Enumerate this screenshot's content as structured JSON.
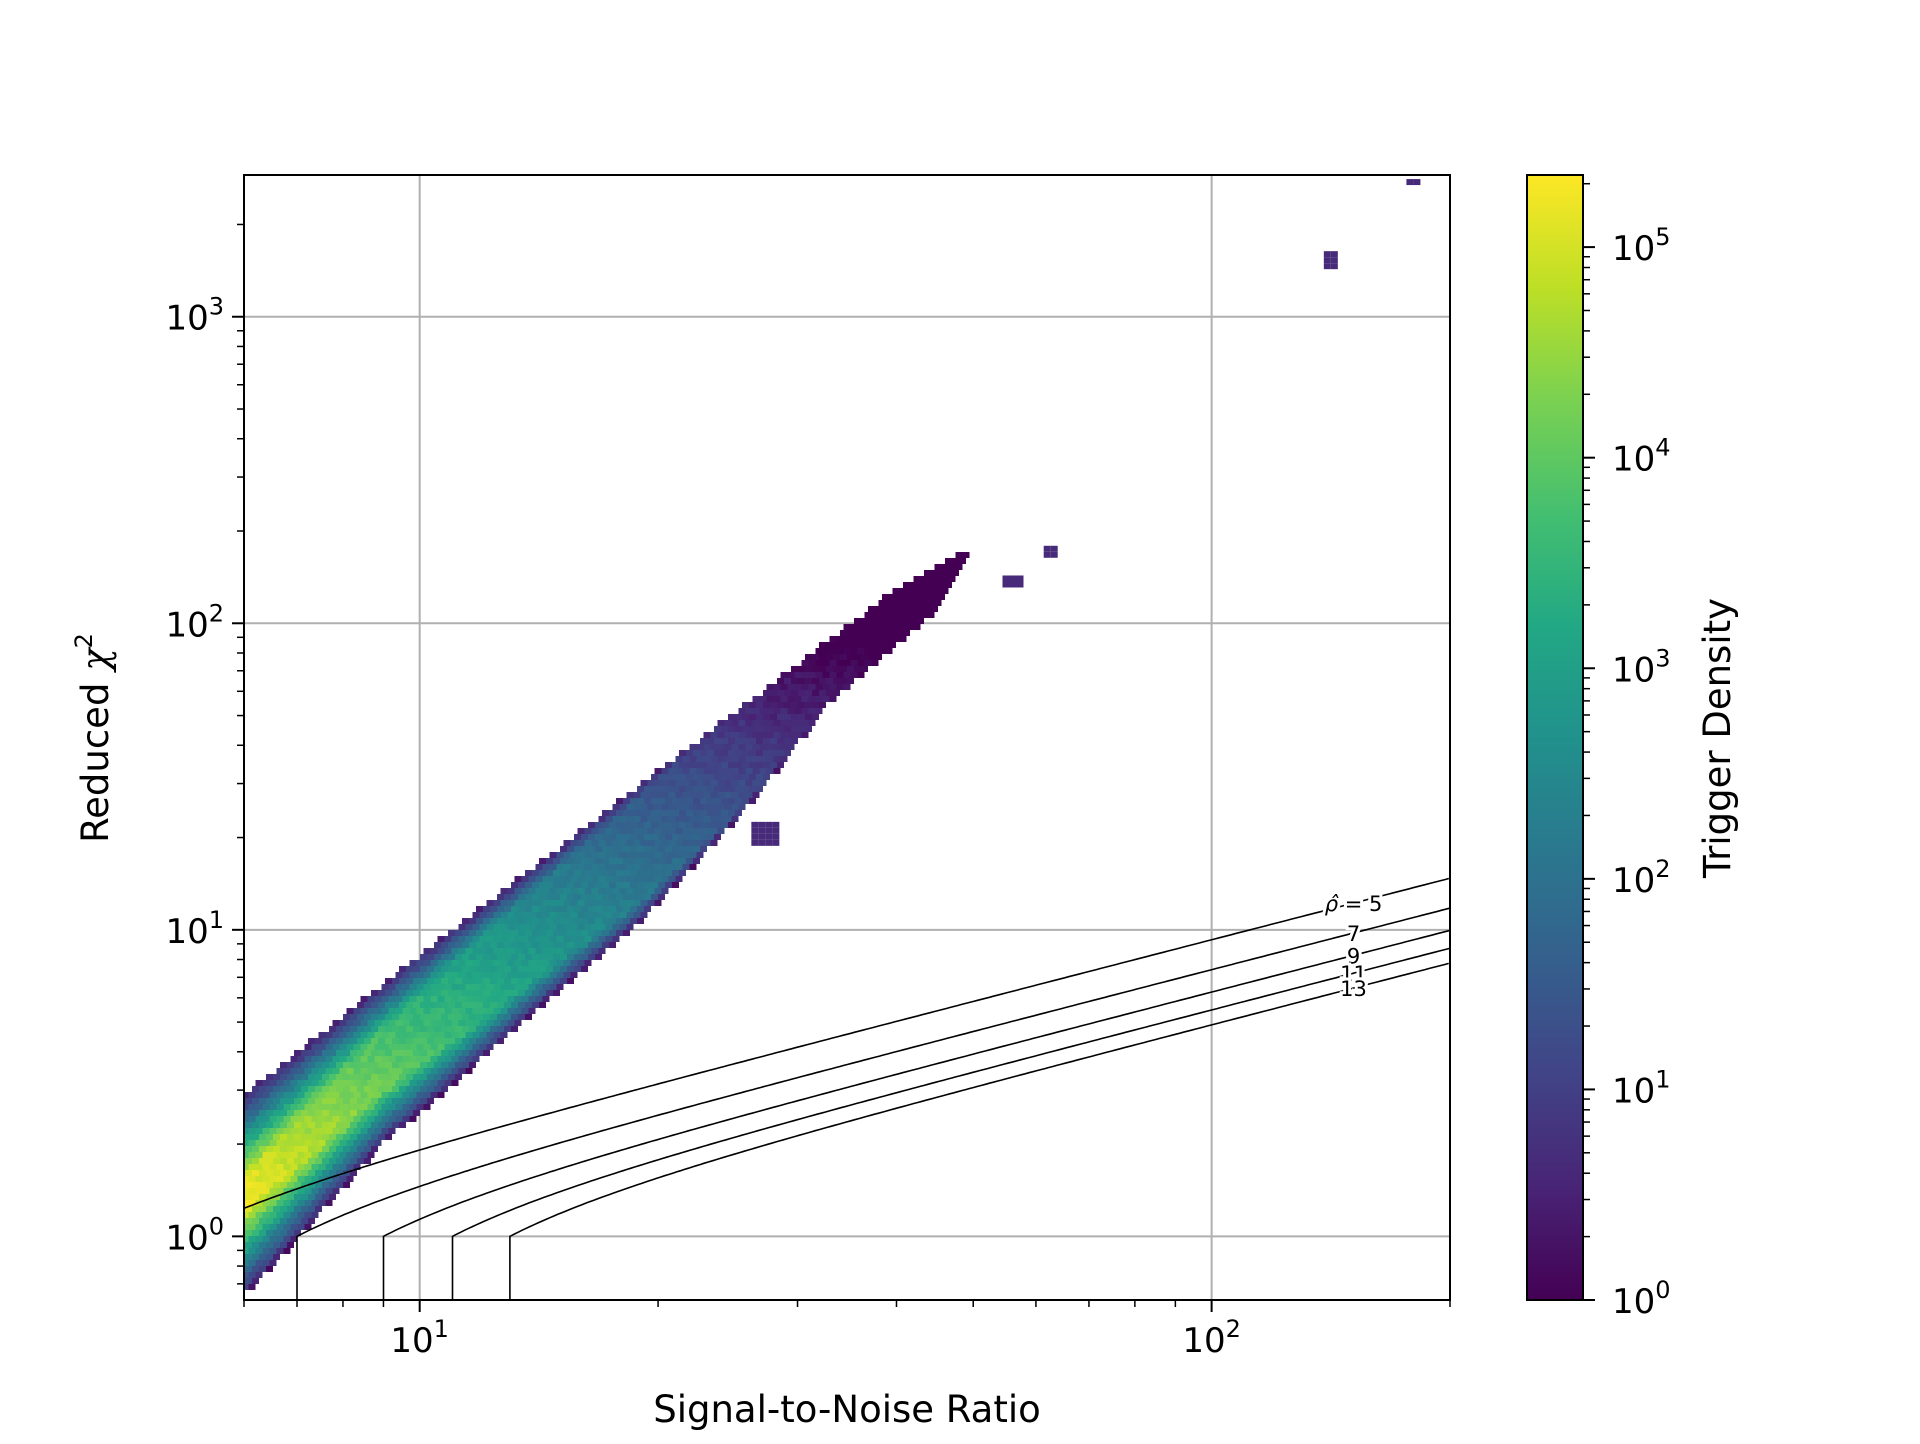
{
  "chart_data": {
    "type": "heatmap",
    "subtype": "hexbin",
    "xlabel": "Signal-to-Noise Ratio",
    "ylabel": "Reduced χ²",
    "ylabel_parts": {
      "main": "Reduced ",
      "symbol": "χ",
      "sup": "2"
    },
    "xscale": "log",
    "yscale": "log",
    "xlim": [
      6,
      200
    ],
    "ylim": [
      0.62,
      2900
    ],
    "grid": true,
    "x_ticks": [
      {
        "value": 10,
        "base": "10",
        "exp": "1"
      },
      {
        "value": 100,
        "base": "10",
        "exp": "2"
      }
    ],
    "y_ticks": [
      {
        "value": 1,
        "base": "10",
        "exp": "0"
      },
      {
        "value": 10,
        "base": "10",
        "exp": "1"
      },
      {
        "value": 100,
        "base": "10",
        "exp": "2"
      },
      {
        "value": 1000,
        "base": "10",
        "exp": "3"
      }
    ],
    "colorbar": {
      "label": "Trigger Density",
      "scale": "log",
      "range": [
        1,
        220000
      ],
      "colormap": "viridis",
      "ticks": [
        {
          "value": 1,
          "base": "10",
          "exp": "0"
        },
        {
          "value": 10,
          "base": "10",
          "exp": "1"
        },
        {
          "value": 100,
          "base": "10",
          "exp": "2"
        },
        {
          "value": 1000,
          "base": "10",
          "exp": "3"
        },
        {
          "value": 10000,
          "base": "10",
          "exp": "4"
        },
        {
          "value": 100000,
          "base": "10",
          "exp": "5"
        }
      ]
    },
    "density_region": {
      "description_free": true,
      "upper_edge": [
        [
          6,
          2.9
        ],
        [
          10,
          8.3
        ],
        [
          20,
          33
        ],
        [
          40,
          130
        ],
        [
          50,
          177
        ]
      ],
      "lower_edge": [
        [
          6,
          0.63
        ],
        [
          7.2,
          1.05
        ],
        [
          9,
          2.0
        ],
        [
          11,
          3.1
        ],
        [
          15,
          6.3
        ],
        [
          19,
          10.5
        ],
        [
          26,
          25
        ],
        [
          33,
          55
        ],
        [
          45,
          110
        ],
        [
          50,
          177
        ]
      ],
      "peak": [
        6.1,
        1.3
      ],
      "isolated_clusters": [
        {
          "x_range": [
            26.5,
            28.5
          ],
          "y_range": [
            18.5,
            22
          ]
        },
        {
          "x_range": [
            55,
            58
          ],
          "y_range": [
            130,
            140
          ]
        },
        {
          "x_range": [
            62,
            64
          ],
          "y_range": [
            165,
            175
          ]
        },
        {
          "x_range": [
            140,
            145
          ],
          "y_range": [
            1450,
            1600
          ]
        },
        {
          "x_range": [
            178,
            182
          ],
          "y_range": [
            2650,
            2750
          ]
        }
      ]
    },
    "contours": [
      {
        "label": "ρ̂ = 5",
        "label_parts": {
          "symbol": "ρ̂",
          "text": " = 5"
        },
        "rho": 5
      },
      {
        "label": "7",
        "rho": 7
      },
      {
        "label": "9",
        "rho": 9
      },
      {
        "label": "11",
        "rho": 11
      },
      {
        "label": "13",
        "rho": 13
      }
    ]
  }
}
